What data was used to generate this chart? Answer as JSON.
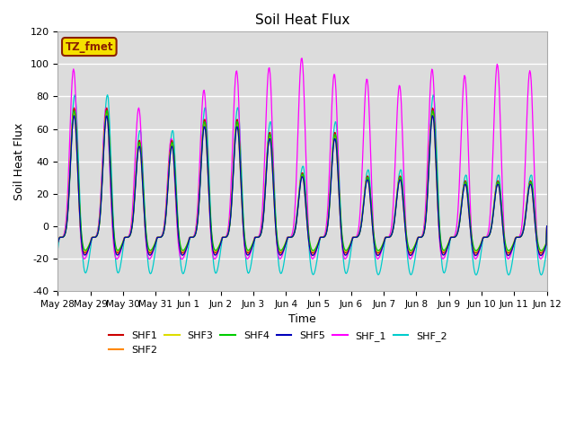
{
  "title": "Soil Heat Flux",
  "xlabel": "Time",
  "ylabel": "Soil Heat Flux",
  "ylim": [
    -40,
    120
  ],
  "bg_color": "#dcdcdc",
  "annotation_text": "TZ_fmet",
  "annotation_bg": "#f5e000",
  "annotation_border": "#8B2000",
  "series": {
    "SHF1": {
      "color": "#cc0000"
    },
    "SHF2": {
      "color": "#ff8800"
    },
    "SHF3": {
      "color": "#dddd00"
    },
    "SHF4": {
      "color": "#00cc00"
    },
    "SHF5": {
      "color": "#0000bb"
    },
    "SHF_1": {
      "color": "#ff00ff"
    },
    "SHF_2": {
      "color": "#00cccc"
    }
  },
  "tick_labels": [
    "May 28",
    "May 29",
    "May 30",
    "May 31",
    "Jun 1",
    "Jun 2",
    "Jun 3",
    "Jun 4",
    "Jun 5",
    "Jun 6",
    "Jun 7",
    "Jun 8",
    "Jun 9",
    "Jun 10",
    "Jun 11",
    "Jun 12"
  ],
  "yticks": [
    -40,
    -20,
    0,
    20,
    40,
    60,
    80,
    100,
    120
  ],
  "n_days": 15,
  "pts_per_day": 48
}
